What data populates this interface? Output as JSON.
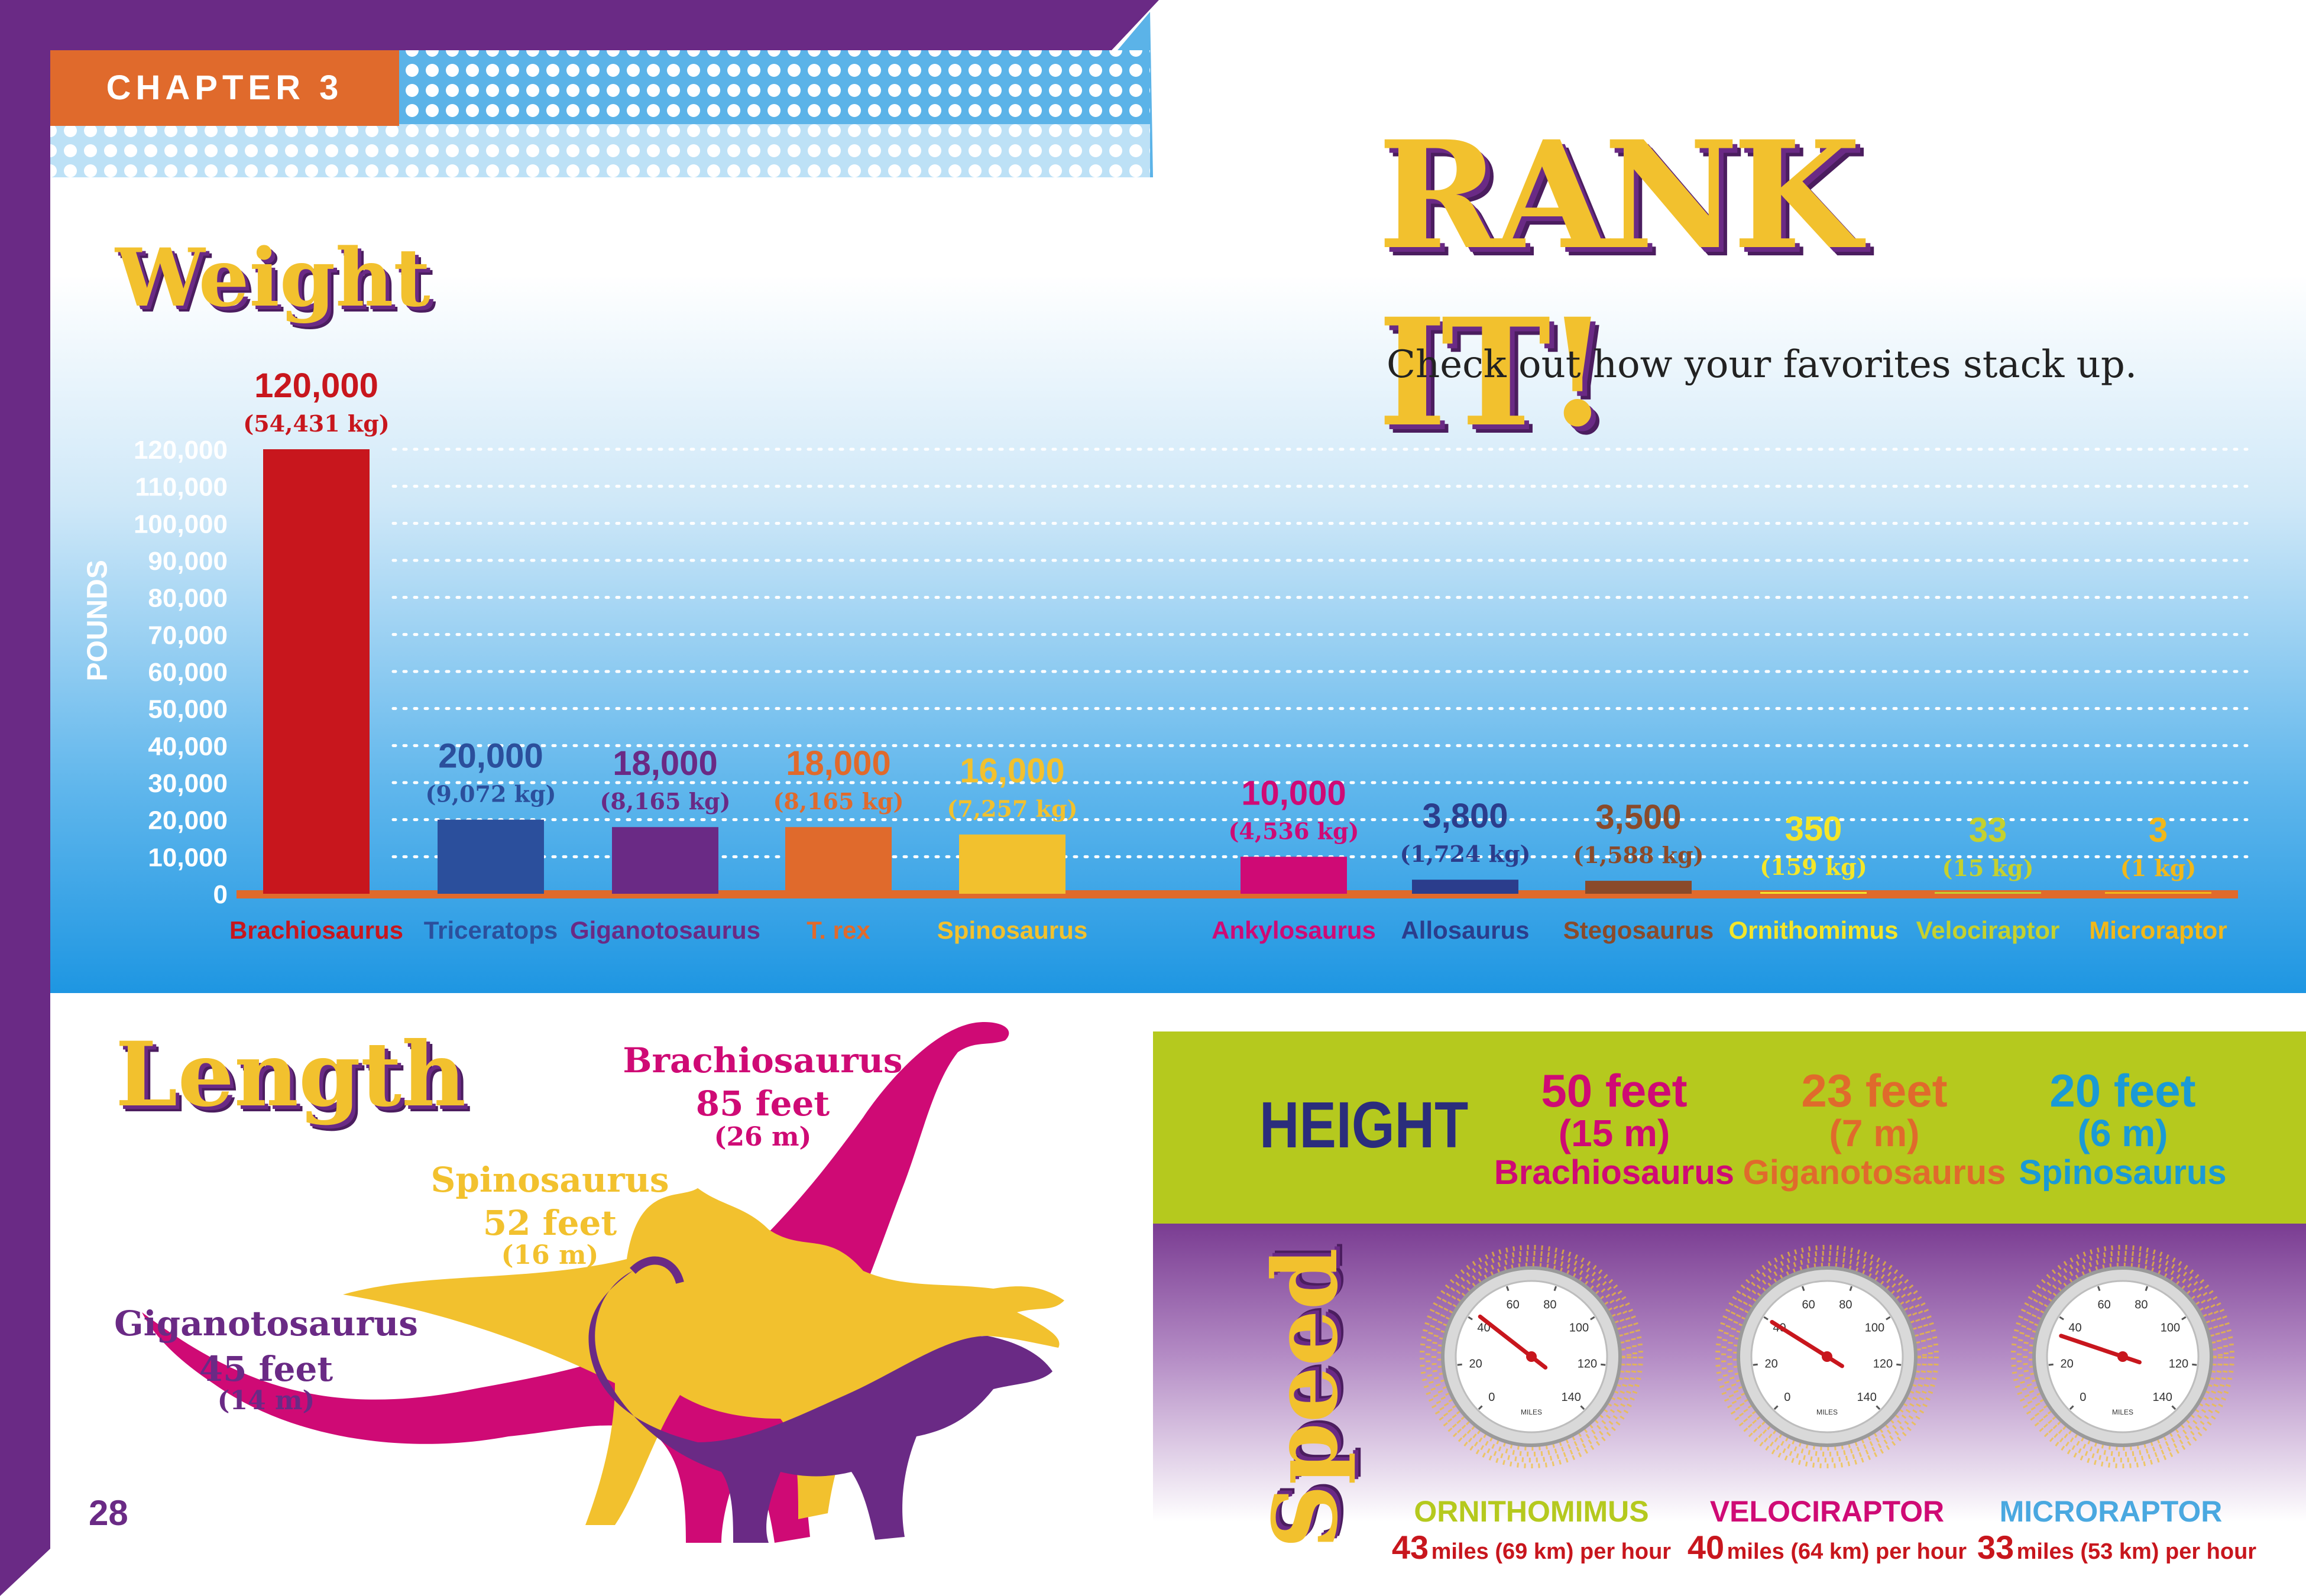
{
  "chapter_label": "CHAPTER 3",
  "page_title": "RANK IT!",
  "intro": "Check out how your favorites stack up.",
  "page_number": "28",
  "weight": {
    "heading": "Weight",
    "axis_label": "POUNDS"
  },
  "chart_data": {
    "type": "bar",
    "title": "Weight",
    "ylabel": "POUNDS",
    "ylim": [
      0,
      120000
    ],
    "yticks": [
      "0",
      "10,000",
      "20,000",
      "30,000",
      "40,000",
      "50,000",
      "60,000",
      "70,000",
      "80,000",
      "90,000",
      "100,000",
      "110,000",
      "120,000"
    ],
    "grid": true,
    "categories": [
      "Brachiosaurus",
      "Triceratops",
      "Giganotosaurus",
      "T. rex",
      "Spinosaurus",
      "Ankylosaurus",
      "Allosaurus",
      "Stegosaurus",
      "Ornithomimus",
      "Velociraptor",
      "Microraptor"
    ],
    "values": [
      120000,
      20000,
      18000,
      18000,
      16000,
      10000,
      3800,
      3500,
      350,
      33,
      3
    ],
    "value_labels": [
      "120,000",
      "20,000",
      "18,000",
      "18,000",
      "16,000",
      "10,000",
      "3,800",
      "3,500",
      "350",
      "33",
      "3"
    ],
    "kg_labels": [
      "(54,431 kg)",
      "(9,072 kg)",
      "(8,165 kg)",
      "(8,165 kg)",
      "(7,257 kg)",
      "(4,536 kg)",
      "(1,724 kg)",
      "(1,588 kg)",
      "(159 kg)",
      "(15 kg)",
      "(1 kg)"
    ],
    "colors": [
      "#c8161d",
      "#2b4f9c",
      "#6a2a85",
      "#e06a2c",
      "#f2c12e",
      "#cf0a75",
      "#2b3d8c",
      "#8a4a2a",
      "#f4e62a",
      "#c5d12e",
      "#f2b81a"
    ]
  },
  "length": {
    "heading": "Length",
    "items": [
      {
        "name": "Brachiosaurus",
        "feet": "85 feet",
        "meters": "(26 m)",
        "color": "#cf0a75"
      },
      {
        "name": "Spinosaurus",
        "feet": "52 feet",
        "meters": "(16 m)",
        "color": "#f2c12e"
      },
      {
        "name": "Giganotosaurus",
        "feet": "45 feet",
        "meters": "(14 m)",
        "color": "#6a2a85"
      }
    ]
  },
  "height": {
    "heading": "HEIGHT",
    "items": [
      {
        "feet": "50 feet",
        "meters": "(15 m)",
        "name": "Brachiosaurus",
        "color": "#cf0a75"
      },
      {
        "feet": "23 feet",
        "meters": "(7 m)",
        "name": "Giganotosaurus",
        "color": "#e06a2c"
      },
      {
        "feet": "20 feet",
        "meters": "(6 m)",
        "name": "Spinosaurus",
        "color": "#1a9ad6"
      }
    ]
  },
  "speed": {
    "heading": "Speed",
    "gauge_ticks": [
      "0",
      "20",
      "40",
      "60",
      "80",
      "100",
      "120",
      "140"
    ],
    "gauge_unit": "MILES",
    "items": [
      {
        "name": "ORNITHOMIMUS",
        "value": 43,
        "number": "43",
        "rest": "miles (69 km) per hour",
        "color": "#b5c91e"
      },
      {
        "name": "VELOCIRAPTOR",
        "value": 40,
        "number": "40",
        "rest": "miles (64 km) per hour",
        "color": "#cf0a75"
      },
      {
        "name": "MICRORAPTOR",
        "value": 33,
        "number": "33",
        "rest": "miles (53 km) per hour",
        "color": "#4aa8e0"
      }
    ]
  }
}
